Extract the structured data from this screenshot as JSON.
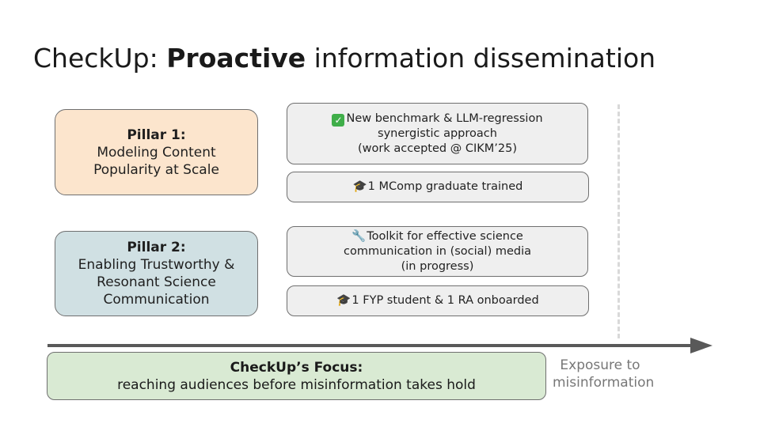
{
  "slide": {
    "title_prefix": "CheckUp: ",
    "title_bold": "Proactive",
    "title_suffix": " information dissemination"
  },
  "pillars": [
    {
      "title": "Pillar 1:",
      "lines": [
        "Modeling Content",
        "Popularity at Scale"
      ],
      "color": "#fce5cd"
    },
    {
      "title": "Pillar 2:",
      "lines": [
        "Enabling Trustworthy &",
        "Resonant Science",
        "Communication"
      ],
      "color": "#d0e0e3"
    }
  ],
  "outcomes": [
    {
      "icon": "check-mark-icon",
      "lines": [
        "New benchmark & LLM-regression",
        "synergistic approach",
        "(work accepted @ CIKM’25)"
      ]
    },
    {
      "icon": "graduation-cap-icon",
      "glyph": "🎓",
      "text": "1 MComp graduate trained"
    },
    {
      "icon": "wrench-icon",
      "glyph": "🔧",
      "lines": [
        "Toolkit for effective science",
        "communication in (social) media",
        "(in progress)"
      ]
    },
    {
      "icon": "graduation-cap-icon",
      "glyph": "🎓",
      "text": "1 FYP student & 1 RA onboarded"
    }
  ],
  "focus": {
    "title": "CheckUp’s Focus:",
    "text": "reaching audiences before misinformation takes hold",
    "color": "#d9ead3"
  },
  "axis": {
    "label_lines": [
      "Exposure to",
      "misinformation"
    ],
    "color": "#595959"
  }
}
